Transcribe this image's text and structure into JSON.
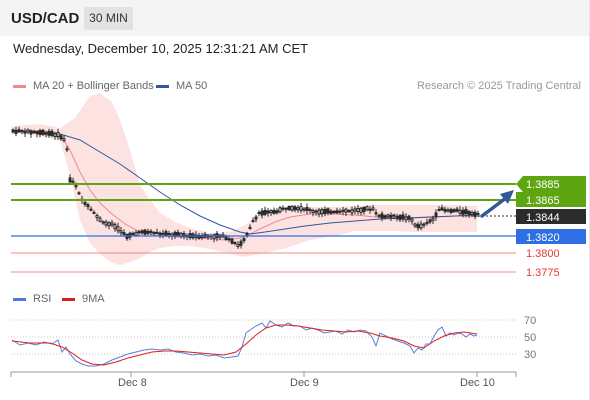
{
  "header": {
    "symbol": "USD/CAD",
    "timeframe": "30 MIN"
  },
  "datetime": "Wednesday, December 10, 2025 12:31:21 AM CET",
  "legend": {
    "ma20_label": "MA 20 + Bollinger Bands",
    "ma50_label": "MA 50",
    "rsi_label": "RSI",
    "ma9_label": "9MA"
  },
  "copyright": "Research © 2025 Trading Central",
  "colors": {
    "green": "#5ea512",
    "blue": "#2f6fe4",
    "red": "#e57373",
    "dark": "#2b2b2b",
    "ma50": "#33579c",
    "band": "#fde2e2"
  },
  "price_levels": {
    "r2": "1.3885",
    "r1": "1.3865",
    "current": "1.3844",
    "pivot": "1.3820",
    "s1": "1.3800",
    "s2": "1.3775"
  },
  "rsi_axis": {
    "t70": "70",
    "t50": "50",
    "t30": "30"
  },
  "x_axis": {
    "d1": "Dec 8",
    "d2": "Dec 9",
    "d3": "Dec 10"
  }
}
